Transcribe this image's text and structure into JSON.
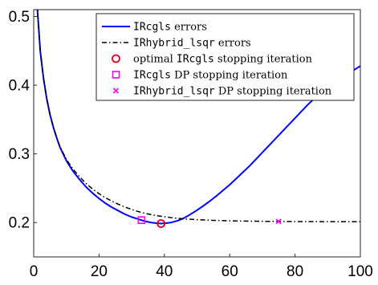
{
  "chart_data": {
    "type": "line",
    "title": "",
    "xlabel": "",
    "ylabel": "",
    "xlim": [
      0,
      100
    ],
    "ylim": [
      0.15,
      0.51
    ],
    "xticks": [
      0,
      20,
      40,
      60,
      80,
      100
    ],
    "yticks": [
      0.2,
      0.3,
      0.4,
      0.5
    ],
    "xtick_labels": [
      "0",
      "20",
      "40",
      "60",
      "80",
      "100"
    ],
    "ytick_labels": [
      "0.2",
      "0.3",
      "0.4",
      "0.5"
    ],
    "grid": false,
    "legend_position": "top-right",
    "series": [
      {
        "name": "IRcgls errors",
        "name_mono": "IRcgls",
        "name_suffix": " errors",
        "style": "solid",
        "color": "#0000ff",
        "x": [
          1,
          2,
          3,
          4,
          5,
          6,
          7,
          8,
          10,
          12,
          14,
          16,
          18,
          20,
          22,
          24,
          26,
          28,
          30,
          32,
          34,
          36,
          38,
          39,
          40,
          42,
          44,
          46,
          48,
          50,
          52,
          54,
          56,
          58,
          60,
          62,
          64,
          66,
          68,
          70,
          72,
          74,
          76,
          78,
          80,
          82,
          84,
          86,
          88,
          90,
          92,
          94,
          96,
          98,
          100
        ],
        "y": [
          0.52,
          0.45,
          0.41,
          0.38,
          0.357,
          0.339,
          0.324,
          0.31,
          0.29,
          0.275,
          0.263,
          0.252,
          0.243,
          0.235,
          0.228,
          0.222,
          0.217,
          0.212,
          0.208,
          0.205,
          0.202,
          0.2,
          0.199,
          0.1985,
          0.199,
          0.2,
          0.2025,
          0.2065,
          0.212,
          0.218,
          0.2245,
          0.2315,
          0.239,
          0.247,
          0.255,
          0.264,
          0.273,
          0.282,
          0.292,
          0.302,
          0.312,
          0.322,
          0.332,
          0.342,
          0.352,
          0.362,
          0.372,
          0.381,
          0.39,
          0.398,
          0.405,
          0.411,
          0.417,
          0.422,
          0.428
        ]
      },
      {
        "name": "IRhybrid_lsqr errors",
        "name_mono": "IRhybrid_lsqr",
        "name_suffix": " errors",
        "style": "dashdot",
        "color": "#000000",
        "x": [
          1,
          2,
          3,
          4,
          5,
          6,
          7,
          8,
          10,
          12,
          14,
          16,
          18,
          20,
          22,
          24,
          26,
          28,
          30,
          32,
          34,
          36,
          38,
          40,
          42,
          44,
          46,
          48,
          50,
          55,
          60,
          65,
          70,
          75,
          80,
          85,
          90,
          95,
          100
        ],
        "y": [
          0.52,
          0.45,
          0.41,
          0.38,
          0.357,
          0.339,
          0.324,
          0.311,
          0.292,
          0.278,
          0.267,
          0.257,
          0.249,
          0.242,
          0.236,
          0.231,
          0.2265,
          0.2225,
          0.219,
          0.216,
          0.2135,
          0.2115,
          0.2098,
          0.2085,
          0.2072,
          0.2062,
          0.2054,
          0.2048,
          0.2042,
          0.2032,
          0.2025,
          0.2021,
          0.2018,
          0.2016,
          0.2015,
          0.2014,
          0.2013,
          0.2013,
          0.2012
        ]
      }
    ],
    "markers": [
      {
        "name": "optimal IRcgls stopping iteration",
        "label_pre": "optimal ",
        "label_mono": "IRcgls",
        "label_post": " stopping iteration",
        "shape": "circle",
        "color": "#e8001a",
        "x": 39,
        "y": 0.1985
      },
      {
        "name": "IRcgls DP stopping iteration",
        "label_pre": "",
        "label_mono": "IRcgls",
        "label_post": " DP stopping iteration",
        "shape": "square",
        "color": "#ff00ff",
        "x": 33,
        "y": 0.2035
      },
      {
        "name": "IRhybrid_lsqr DP stopping iteration",
        "label_pre": "",
        "label_mono": "IRhybrid_lsqr",
        "label_post": " DP stopping iteration",
        "shape": "x",
        "color": "#ff00ff",
        "x": 75,
        "y": 0.2016
      }
    ]
  }
}
